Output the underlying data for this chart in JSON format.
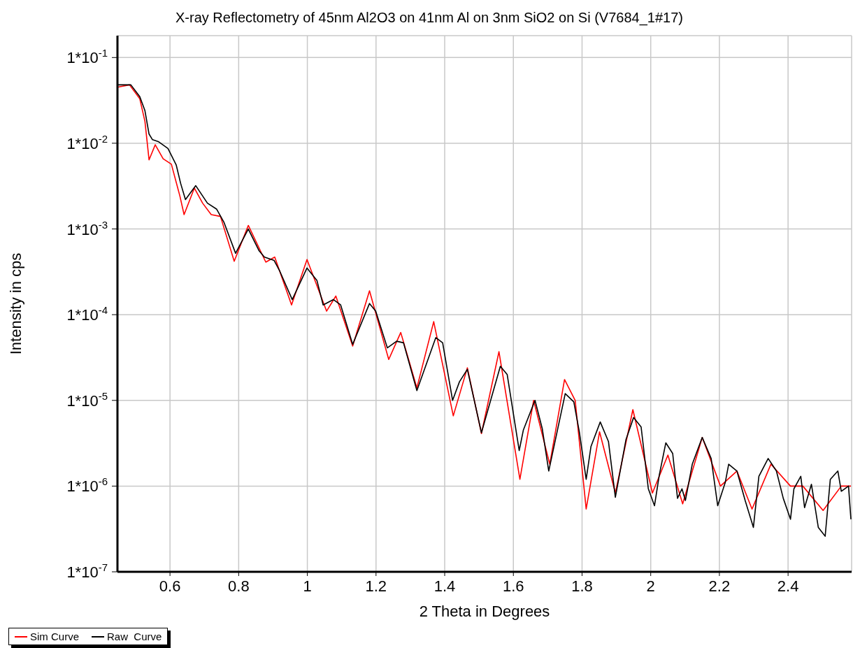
{
  "chart_data": {
    "type": "line",
    "title": "X-ray Reflectometry of 45nm Al2O3 on 41nm Al on 3nm SiO2 on Si (V7684_1#17)",
    "xlabel": "2 Theta in Degrees",
    "ylabel": "Intensity in cps",
    "log": "y",
    "grid": true,
    "legend": "bottom left",
    "xlim": [
      0.447,
      2.585
    ],
    "xticks": [
      0.6,
      0.8,
      1,
      1.2,
      1.4,
      1.6,
      1.8,
      2,
      2.2,
      2.4
    ],
    "ylim": [
      1e-07,
      0.18
    ],
    "yticks": [
      {
        "value": 1e-07,
        "label": "1*10$^{-7}$"
      },
      {
        "value": 1e-06,
        "label": "1*10$^{-6}$"
      },
      {
        "value": 1e-05,
        "label": "1*10$^{-5}$"
      },
      {
        "value": 0.0001,
        "label": "1*10$^{-4}$"
      },
      {
        "value": 0.001,
        "label": "1*10$^{-3}$"
      },
      {
        "value": 0.01,
        "label": "1*10$^{-2}$"
      },
      {
        "value": 0.1,
        "label": "1*10$^{-1}$"
      }
    ],
    "series": [
      {
        "name": "Sim Curve",
        "color": "#ff0000",
        "x": [
          0.447,
          0.482,
          0.512,
          0.527,
          0.539,
          0.557,
          0.58,
          0.604,
          0.629,
          0.641,
          0.671,
          0.695,
          0.72,
          0.747,
          0.787,
          0.828,
          0.879,
          0.905,
          0.954,
          0.999,
          1.056,
          1.083,
          1.132,
          1.181,
          1.237,
          1.272,
          1.319,
          1.368,
          1.425,
          1.466,
          1.507,
          1.558,
          1.619,
          1.659,
          1.706,
          1.749,
          1.78,
          1.812,
          1.851,
          1.897,
          1.948,
          2.005,
          2.05,
          2.093,
          2.15,
          2.203,
          2.251,
          2.295,
          2.35,
          2.407,
          2.443,
          2.502,
          2.555,
          2.583
        ],
        "values": [
          0.045,
          0.048,
          0.033,
          0.018,
          0.0064,
          0.0096,
          0.0066,
          0.0057,
          0.0024,
          0.00147,
          0.003,
          0.002,
          0.00147,
          0.0014,
          0.00042,
          0.0011,
          0.00041,
          0.00047,
          0.00013,
          0.00044,
          0.00011,
          0.000165,
          4.3e-05,
          0.00019,
          3e-05,
          6.2e-05,
          1.4e-05,
          8.3e-05,
          6.6e-06,
          2.4e-05,
          4.1e-06,
          3.7e-05,
          1.2e-06,
          1e-05,
          1.8e-06,
          1.75e-05,
          1e-05,
          5.4e-07,
          4.3e-06,
          8.3e-07,
          7.8e-06,
          8.3e-07,
          2.3e-06,
          6.2e-07,
          3.7e-06,
          1e-06,
          1.5e-06,
          5.4e-07,
          1.8e-06,
          1e-06,
          1e-06,
          5.2e-07,
          1e-06,
          1e-06
        ]
      },
      {
        "name": "Raw  Curve",
        "color": "#000000",
        "x": [
          0.447,
          0.486,
          0.512,
          0.527,
          0.539,
          0.549,
          0.567,
          0.594,
          0.618,
          0.631,
          0.645,
          0.675,
          0.709,
          0.736,
          0.757,
          0.791,
          0.828,
          0.859,
          0.875,
          0.903,
          0.92,
          0.956,
          0.999,
          1.028,
          1.046,
          1.076,
          1.097,
          1.132,
          1.181,
          1.199,
          1.233,
          1.26,
          1.28,
          1.319,
          1.374,
          1.394,
          1.423,
          1.443,
          1.466,
          1.507,
          1.562,
          1.582,
          1.617,
          1.629,
          1.663,
          1.684,
          1.703,
          1.751,
          1.776,
          1.792,
          1.812,
          1.826,
          1.853,
          1.877,
          1.897,
          1.928,
          1.95,
          1.972,
          1.993,
          2.011,
          2.025,
          2.044,
          2.064,
          2.078,
          2.091,
          2.101,
          2.121,
          2.15,
          2.176,
          2.195,
          2.217,
          2.227,
          2.251,
          2.275,
          2.299,
          2.315,
          2.342,
          2.366,
          2.386,
          2.407,
          2.417,
          2.437,
          2.448,
          2.468,
          2.488,
          2.508,
          2.523,
          2.545,
          2.555,
          2.576,
          2.583
        ],
        "values": [
          0.048,
          0.048,
          0.035,
          0.024,
          0.0128,
          0.011,
          0.0104,
          0.0087,
          0.0056,
          0.0034,
          0.0022,
          0.0032,
          0.002,
          0.0017,
          0.0012,
          0.00052,
          0.001,
          0.00056,
          0.00047,
          0.00043,
          0.00032,
          0.00015,
          0.00035,
          0.00025,
          0.00013,
          0.00015,
          0.00013,
          4.5e-05,
          0.000135,
          0.00011,
          4.1e-05,
          4.9e-05,
          4.7e-05,
          1.3e-05,
          5.4e-05,
          4.7e-05,
          1e-05,
          1.65e-05,
          2.3e-05,
          4.2e-06,
          2.5e-05,
          2e-05,
          2.6e-06,
          4.5e-06,
          1e-05,
          4.7e-06,
          1.5e-06,
          1.2e-05,
          9.6e-06,
          4.3e-06,
          1.2e-06,
          2.9e-06,
          5.6e-06,
          3.3e-06,
          7.4e-07,
          3.5e-06,
          6.3e-06,
          4.9e-06,
          9.3e-07,
          5.9e-07,
          1.35e-06,
          3.2e-06,
          2.4e-06,
          7.2e-07,
          9.3e-07,
          6.8e-07,
          1.8e-06,
          3.7e-06,
          2.1e-06,
          5.9e-07,
          1.1e-06,
          1.8e-06,
          1.5e-06,
          6.8e-07,
          3.3e-07,
          1.3e-06,
          2.1e-06,
          1.5e-06,
          7.2e-07,
          4.1e-07,
          9.3e-07,
          1.3e-06,
          5.6e-07,
          1.05e-06,
          3.3e-07,
          2.6e-07,
          1.2e-06,
          1.5e-06,
          8.7e-07,
          1e-06,
          4.1e-07
        ]
      }
    ]
  }
}
